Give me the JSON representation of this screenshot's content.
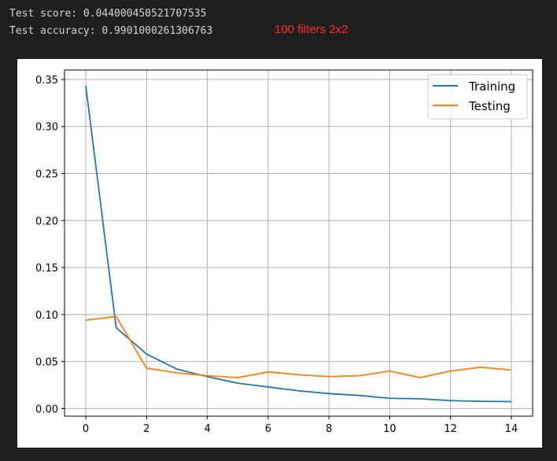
{
  "output": {
    "line1": "Test score: 0.044000450521707535",
    "line2": "Test accuracy: 0.9901000261306763",
    "annotation": "100 filters 2x2"
  },
  "colors": {
    "training": "#1f77b4",
    "testing": "#ff7f0e",
    "annotation": "#ff2a2a"
  },
  "chart_data": {
    "type": "line",
    "title": "",
    "xlabel": "",
    "ylabel": "",
    "xlim": [
      -0.7,
      14.7
    ],
    "ylim": [
      -0.008,
      0.36
    ],
    "x_ticks": [
      0,
      2,
      4,
      6,
      8,
      10,
      12,
      14
    ],
    "x_tick_labels": [
      "0",
      "2",
      "4",
      "6",
      "8",
      "10",
      "12",
      "14"
    ],
    "y_ticks": [
      0.0,
      0.05,
      0.1,
      0.15,
      0.2,
      0.25,
      0.3,
      0.35
    ],
    "y_tick_labels": [
      "0.00",
      "0.05",
      "0.10",
      "0.15",
      "0.20",
      "0.25",
      "0.30",
      "0.35"
    ],
    "grid": true,
    "legend_position": "top-right",
    "x": [
      0,
      1,
      2,
      3,
      4,
      5,
      6,
      7,
      8,
      9,
      10,
      11,
      12,
      13,
      14
    ],
    "series": [
      {
        "name": "Training",
        "color": "#1f77b4",
        "values": [
          0.343,
          0.086,
          0.058,
          0.042,
          0.034,
          0.027,
          0.023,
          0.019,
          0.016,
          0.014,
          0.011,
          0.0105,
          0.0085,
          0.0078,
          0.0075
        ]
      },
      {
        "name": "Testing",
        "color": "#ff7f0e",
        "values": [
          0.094,
          0.098,
          0.043,
          0.038,
          0.035,
          0.033,
          0.039,
          0.036,
          0.034,
          0.035,
          0.04,
          0.033,
          0.04,
          0.044,
          0.041
        ]
      }
    ]
  }
}
